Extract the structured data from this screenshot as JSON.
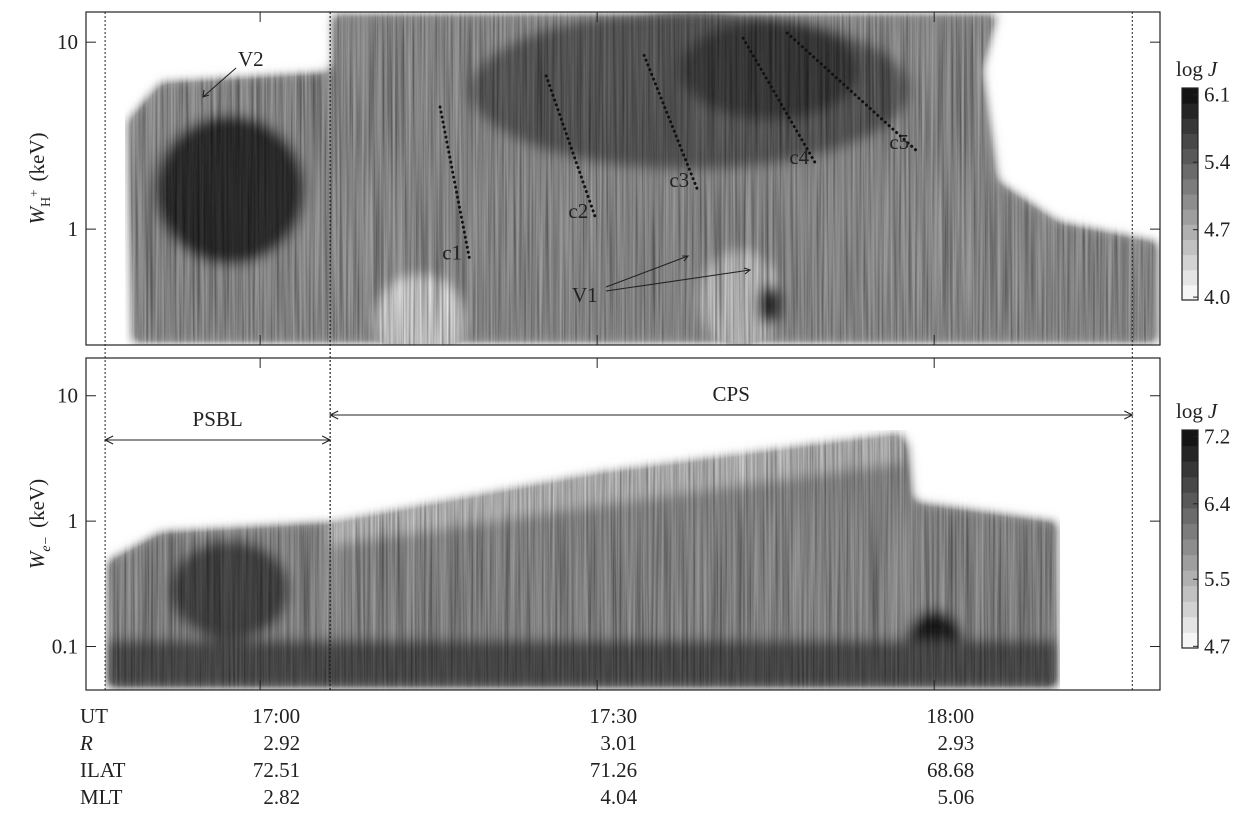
{
  "chart_data": {
    "type": "spectrogram",
    "xlim": [
      "16:44:30",
      "18:20:06"
    ],
    "xticks": [
      "17:00",
      "17:30",
      "18:00"
    ],
    "panels": [
      {
        "ylabel_symbol": "W",
        "ylabel_subscript": "H",
        "ylabel_superscript": "+",
        "ylabel_unit": "(keV)",
        "log_y": true,
        "ylim": [
          0.24,
          14.5
        ],
        "yticks": [
          1,
          10
        ],
        "colorbar": {
          "label": "log",
          "symbol": "J",
          "clim": [
            3.97,
            6.17
          ],
          "ticks": [
            {
              "value": 4,
              "label": "4.0"
            },
            4.7,
            5.4,
            6.1
          ]
        }
      },
      {
        "ylabel_symbol": "W",
        "ylabel_subscript": "e−",
        "ylabel_unit": "(keV)",
        "log_y": true,
        "ylim": [
          0.045,
          20
        ],
        "yticks": [
          0.1,
          1,
          10
        ],
        "colorbar": {
          "label": "log",
          "symbol": "J",
          "clim": [
            4.68,
            7.28
          ],
          "ticks": [
            4.7,
            5.5,
            6.4,
            7.2
          ]
        }
      }
    ],
    "regions": [
      {
        "name": "PSBL",
        "start": "16:46:12",
        "end": "17:06:14"
      },
      {
        "name": "CPS",
        "start": "17:06:14",
        "end": "18:17:38"
      }
    ],
    "dispersions": [
      {
        "label": "c1",
        "x": [
          "17:16:01",
          "17:18:41"
        ],
        "y": [
          4.5,
          0.67
        ]
      },
      {
        "label": "c2",
        "x": [
          "17:25:28",
          "17:29:55"
        ],
        "y": [
          6.6,
          1.12
        ]
      },
      {
        "label": "c3",
        "x": [
          "17:34:11",
          "17:38:54"
        ],
        "y": [
          8.5,
          1.64
        ]
      },
      {
        "label": "c4",
        "x": [
          "17:43:00",
          "17:49:35"
        ],
        "y": [
          10.5,
          2.17
        ]
      },
      {
        "label": "c5",
        "x": [
          "17:46:55",
          "17:58:29"
        ],
        "y": [
          11.2,
          2.61
        ]
      }
    ],
    "annotations": [
      "V1",
      "V2"
    ],
    "ephemeris": {
      "rows": [
        "UT",
        "R",
        "ILAT",
        "MLT"
      ],
      "columns": [
        {
          "UT": "17:00",
          "R": 2.92,
          "ILAT": 72.51,
          "MLT": 2.82
        },
        {
          "UT": "17:30",
          "R": 3.01,
          "ILAT": 71.26,
          "MLT": 4.04
        },
        {
          "UT": "18:00",
          "R": 2.93,
          "ILAT": 68.68,
          "MLT": 5.06
        }
      ]
    }
  }
}
